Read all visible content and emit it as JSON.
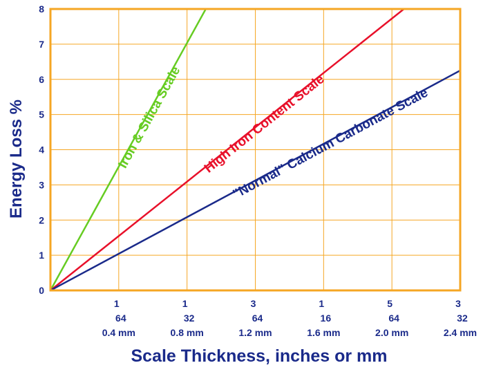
{
  "chart_data": {
    "type": "line",
    "title": "",
    "xlabel": "Scale Thickness, inches or mm",
    "ylabel": "Energy Loss %",
    "xlim": [
      0,
      2.4
    ],
    "ylim": [
      0,
      8
    ],
    "grid": true,
    "y_ticks": [
      "0",
      "1",
      "2",
      "3",
      "4",
      "5",
      "6",
      "7",
      "8"
    ],
    "x_ticks": [
      {
        "value": 0.4,
        "numerator": "1",
        "denominator": "64",
        "mm": "0.4 mm"
      },
      {
        "value": 0.8,
        "numerator": "1",
        "denominator": "32",
        "mm": "0.8 mm"
      },
      {
        "value": 1.2,
        "numerator": "3",
        "denominator": "64",
        "mm": "1.2 mm"
      },
      {
        "value": 1.6,
        "numerator": "1",
        "denominator": "16",
        "mm": "1.6 mm"
      },
      {
        "value": 2.0,
        "numerator": "5",
        "denominator": "64",
        "mm": "2.0 mm"
      },
      {
        "value": 2.4,
        "numerator": "3",
        "denominator": "32",
        "mm": "2.4 mm"
      }
    ],
    "series": [
      {
        "name": "Iron & Silica Scale",
        "color": "#66cc22",
        "x": [
          0,
          0.91
        ],
        "y": [
          0,
          8
        ]
      },
      {
        "name": "High Iron Content Scale",
        "color": "#e8102a",
        "x": [
          0,
          2.07
        ],
        "y": [
          0,
          8
        ]
      },
      {
        "name": "\"Normal\" Calcium Carbonate Scale",
        "color": "#1a2a8a",
        "x": [
          0,
          2.4
        ],
        "y": [
          0,
          6.25
        ]
      }
    ],
    "colors": {
      "frame": "#f5a623",
      "grid": "#f5a623",
      "text": "#1a2a8a"
    }
  }
}
